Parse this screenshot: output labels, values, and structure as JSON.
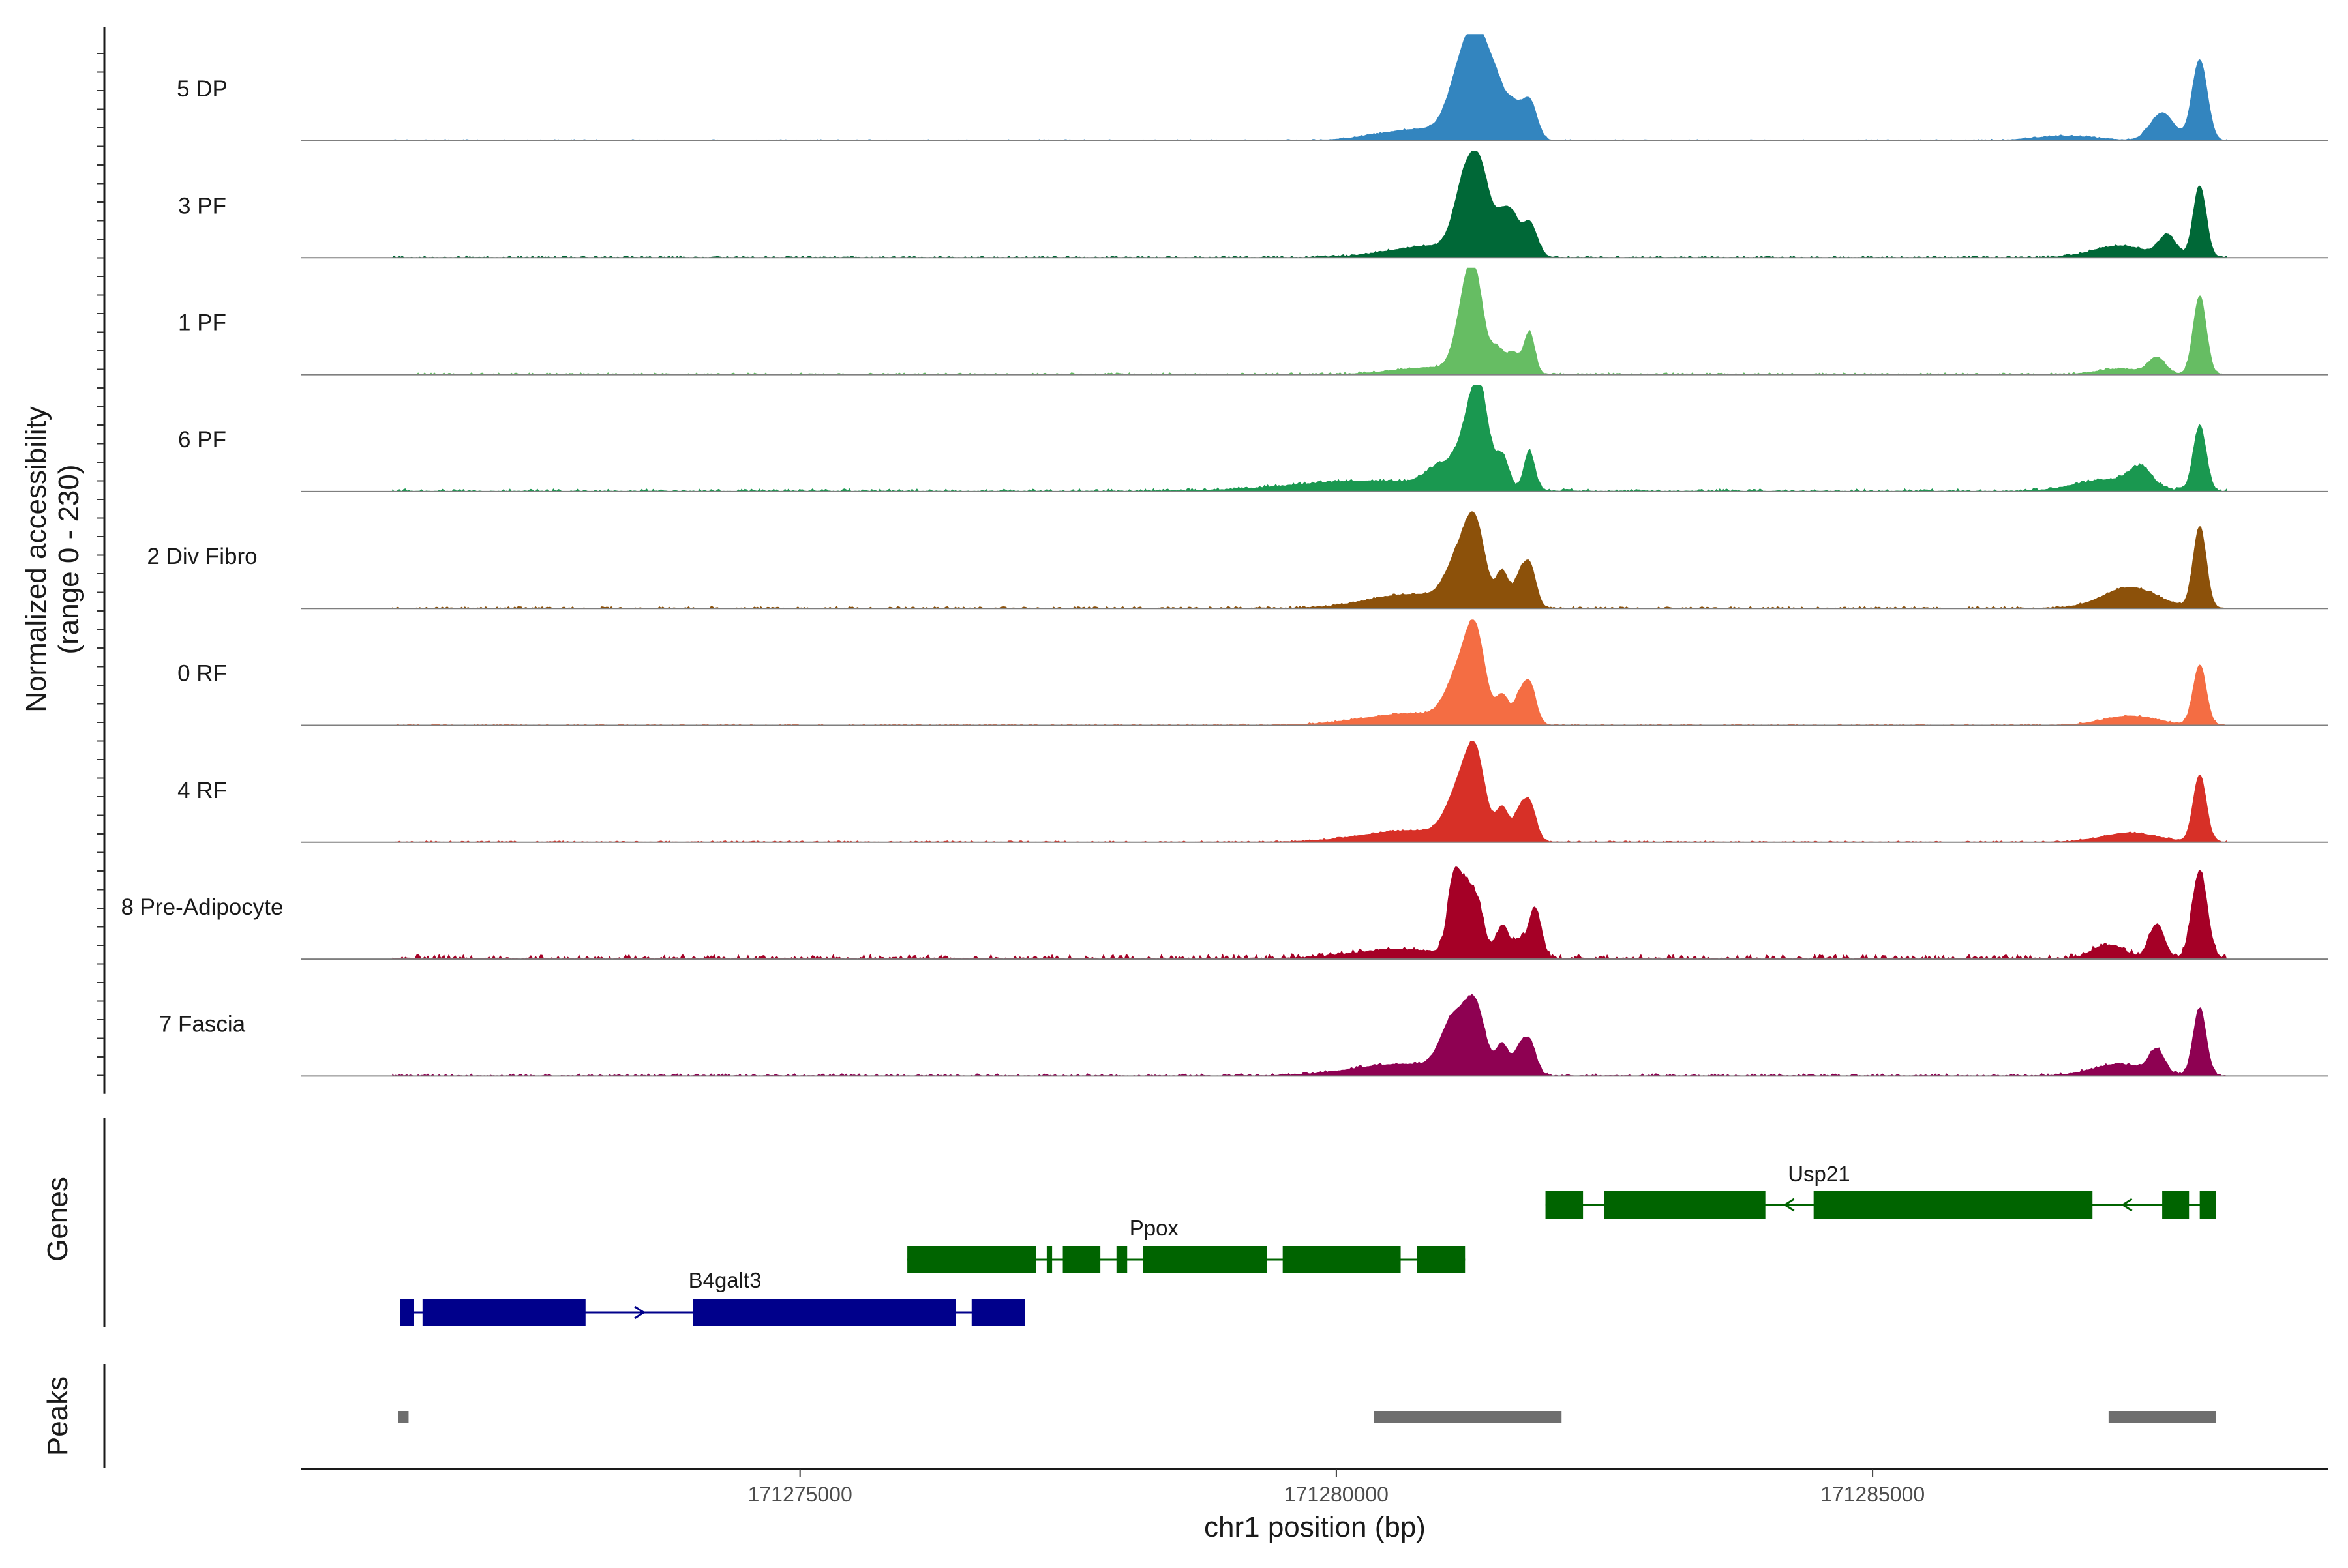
{
  "chart_data": {
    "type": "area",
    "title": "",
    "ylabel_line1": "Normalized accessibility",
    "ylabel_line2": "(range 0 - 230)",
    "y_range": [
      0,
      230
    ],
    "xlabel": "chr1 position (bp)",
    "x_range": [
      171270350,
      171289250
    ],
    "x_ticks": [
      171275000,
      171280000,
      171285000
    ],
    "x_tick_labels": [
      "171275000",
      "171280000",
      "171285000"
    ],
    "track_start": 171271200,
    "track_end": 171288300,
    "genes_label": "Genes",
    "peaks_label": "Peaks",
    "tracks": [
      {
        "name": "5 DP",
        "color": "#3385bf",
        "noise": 3,
        "peaks": [
          [
            171280800,
            400,
            25
          ],
          [
            171281200,
            130,
            165
          ],
          [
            171281350,
            100,
            130
          ],
          [
            171281500,
            80,
            85
          ],
          [
            171281650,
            70,
            65
          ],
          [
            171281800,
            70,
            85
          ],
          [
            171286800,
            300,
            10
          ],
          [
            171287700,
            110,
            60
          ],
          [
            171288050,
            70,
            175
          ]
        ]
      },
      {
        "name": "3 PF",
        "color": "#006837",
        "noise": 4,
        "peaks": [
          [
            171280900,
            400,
            25
          ],
          [
            171281200,
            100,
            145
          ],
          [
            171281350,
            90,
            150
          ],
          [
            171281550,
            70,
            75
          ],
          [
            171281650,
            60,
            60
          ],
          [
            171281800,
            70,
            75
          ],
          [
            171287300,
            250,
            25
          ],
          [
            171287750,
            80,
            45
          ],
          [
            171288050,
            60,
            155
          ]
        ]
      },
      {
        "name": "1 PF",
        "color": "#66bd63",
        "noise": 4,
        "peaks": [
          [
            171280900,
            350,
            15
          ],
          [
            171281200,
            90,
            130
          ],
          [
            171281300,
            80,
            155
          ],
          [
            171281500,
            60,
            50
          ],
          [
            171281650,
            60,
            45
          ],
          [
            171281800,
            50,
            90
          ],
          [
            171287300,
            200,
            12
          ],
          [
            171287650,
            80,
            35
          ],
          [
            171288050,
            60,
            170
          ]
        ]
      },
      {
        "name": "6 PF",
        "color": "#1a9850",
        "noise": 6,
        "peaks": [
          [
            171280300,
            700,
            22
          ],
          [
            171281000,
            150,
            45
          ],
          [
            171281250,
            100,
            125
          ],
          [
            171281350,
            80,
            145
          ],
          [
            171281550,
            60,
            70
          ],
          [
            171281800,
            50,
            85
          ],
          [
            171287200,
            300,
            25
          ],
          [
            171287500,
            100,
            40
          ],
          [
            171288050,
            60,
            140
          ]
        ]
      },
      {
        "name": "2 Div Fibro",
        "color": "#8c510a",
        "noise": 4,
        "peaks": [
          [
            171280700,
            400,
            30
          ],
          [
            171281150,
            120,
            100
          ],
          [
            171281300,
            90,
            145
          ],
          [
            171281550,
            60,
            75
          ],
          [
            171281700,
            50,
            50
          ],
          [
            171281800,
            60,
            95
          ],
          [
            171287400,
            250,
            45
          ],
          [
            171288050,
            60,
            175
          ]
        ]
      },
      {
        "name": "0 RF",
        "color": "#f46d43",
        "noise": 3,
        "peaks": [
          [
            171280700,
            450,
            25
          ],
          [
            171281150,
            120,
            100
          ],
          [
            171281300,
            90,
            165
          ],
          [
            171281550,
            60,
            60
          ],
          [
            171281700,
            50,
            45
          ],
          [
            171281800,
            60,
            90
          ],
          [
            171287400,
            250,
            20
          ],
          [
            171288050,
            60,
            130
          ]
        ]
      },
      {
        "name": "4 RF",
        "color": "#d73027",
        "noise": 3,
        "peaks": [
          [
            171280700,
            450,
            25
          ],
          [
            171281150,
            120,
            100
          ],
          [
            171281300,
            90,
            155
          ],
          [
            171281550,
            60,
            70
          ],
          [
            171281700,
            50,
            50
          ],
          [
            171281800,
            60,
            85
          ],
          [
            171287400,
            250,
            20
          ],
          [
            171288050,
            60,
            145
          ]
        ]
      },
      {
        "name": "8 Pre-Adipocyte",
        "color": "#a50026",
        "noise": 10,
        "peaks": [
          [
            171280600,
            450,
            20
          ],
          [
            171281100,
            60,
            170
          ],
          [
            171281200,
            50,
            80
          ],
          [
            171281300,
            70,
            125
          ],
          [
            171281550,
            60,
            70
          ],
          [
            171281700,
            50,
            35
          ],
          [
            171281850,
            60,
            110
          ],
          [
            171287200,
            150,
            30
          ],
          [
            171287650,
            70,
            75
          ],
          [
            171288050,
            70,
            190
          ]
        ]
      },
      {
        "name": "7 Fascia",
        "color": "#8e0152",
        "noise": 5,
        "peaks": [
          [
            171280600,
            450,
            25
          ],
          [
            171281100,
            120,
            115
          ],
          [
            171281300,
            90,
            130
          ],
          [
            171281550,
            60,
            65
          ],
          [
            171281700,
            50,
            45
          ],
          [
            171281800,
            60,
            75
          ],
          [
            171287300,
            250,
            25
          ],
          [
            171287650,
            70,
            50
          ],
          [
            171288050,
            60,
            145
          ]
        ]
      }
    ],
    "genes": [
      {
        "name": "B4galt3",
        "color": "#00008b",
        "row": 0,
        "start": 171271270,
        "end": 171277100,
        "strand": "+",
        "label_pos": 171274300,
        "exons": [
          [
            171271270,
            171271400
          ],
          [
            171271480,
            171273000
          ],
          [
            171274000,
            171276450
          ],
          [
            171276600,
            171277100
          ]
        ]
      },
      {
        "name": "Ppox",
        "color": "#006400",
        "row": 1,
        "start": 171276000,
        "end": 171281200,
        "strand": "-",
        "label_pos": 171278300,
        "exons": [
          [
            171276000,
            171277200
          ],
          [
            171277300,
            171277350
          ],
          [
            171277450,
            171277800
          ],
          [
            171277950,
            171278050
          ],
          [
            171278200,
            171279350
          ],
          [
            171279500,
            171280600
          ],
          [
            171280750,
            171281200
          ]
        ]
      },
      {
        "name": "Usp21",
        "color": "#006400",
        "row": 2,
        "start": 171281950,
        "end": 171288200,
        "strand": "-",
        "label_pos": 171284500,
        "exons": [
          [
            171281950,
            171282300
          ],
          [
            171282500,
            171284000
          ],
          [
            171284450,
            171287050
          ],
          [
            171287700,
            171287950
          ],
          [
            171288050,
            171288200
          ]
        ]
      }
    ],
    "peak_regions": [
      [
        171271250,
        171271350
      ],
      [
        171280350,
        171282100
      ],
      [
        171287200,
        171288200
      ]
    ]
  }
}
